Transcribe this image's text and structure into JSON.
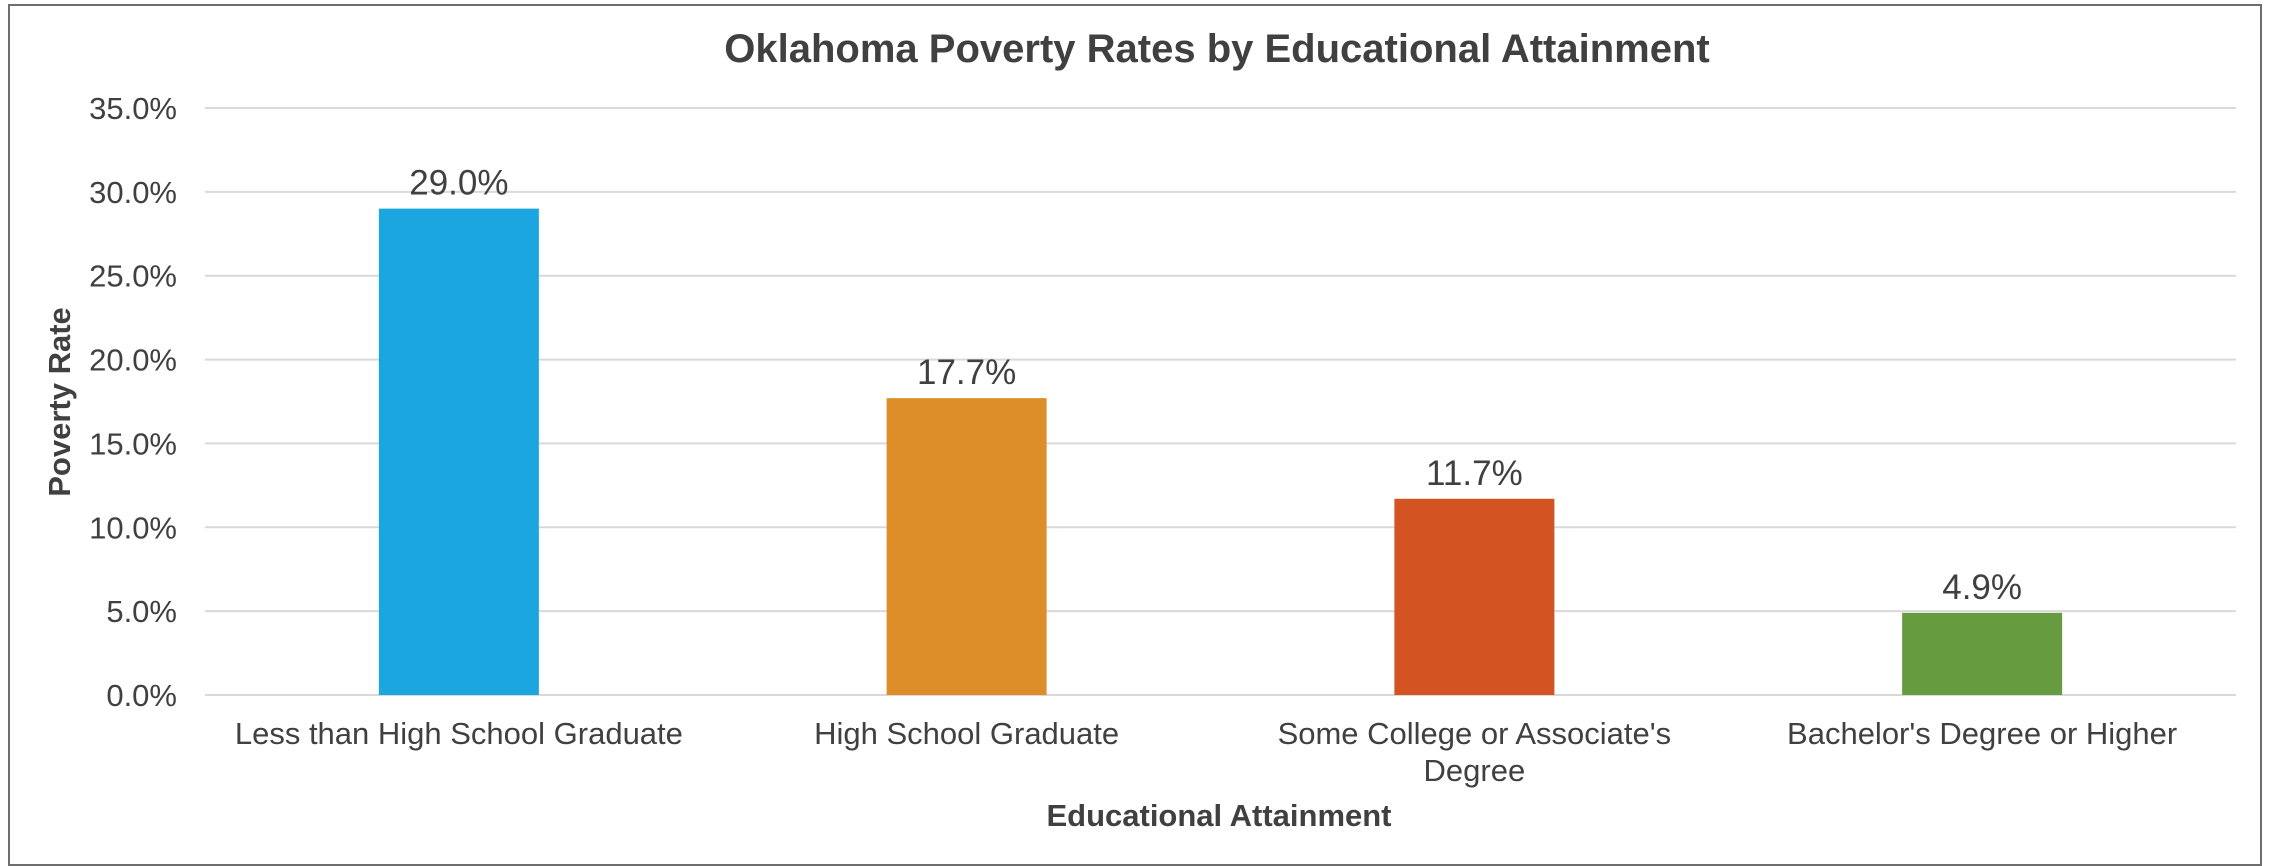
{
  "chart_data": {
    "type": "bar",
    "title": "Oklahoma Poverty Rates by Educational Attainment",
    "xlabel": "Educational Attainment",
    "ylabel": "Poverty Rate",
    "categories": [
      [
        "Less than High School Graduate"
      ],
      [
        "High School Graduate"
      ],
      [
        "Some College or Associate's",
        "Degree"
      ],
      [
        "Bachelor's Degree or Higher"
      ]
    ],
    "values": [
      29.0,
      17.7,
      11.7,
      4.9
    ],
    "data_labels": [
      "29.0%",
      "17.7%",
      "11.7%",
      "4.9%"
    ],
    "colors": [
      "#1ca6e0",
      "#de8e28",
      "#d35322",
      "#679b40"
    ],
    "ylim": [
      0,
      35
    ],
    "yticks": [
      0,
      5,
      10,
      15,
      20,
      25,
      30,
      35
    ],
    "ytick_labels": [
      "0.0%",
      "5.0%",
      "10.0%",
      "15.0%",
      "20.0%",
      "25.0%",
      "30.0%",
      "35.0%"
    ],
    "grid": true,
    "legend": "none"
  }
}
